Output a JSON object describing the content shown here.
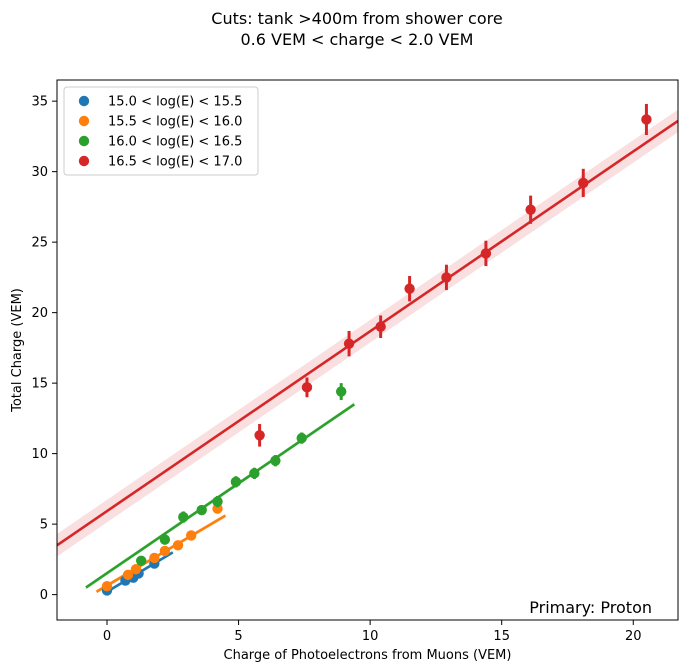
{
  "chart_data": {
    "type": "scatter",
    "title": "Cuts:  tank >400m from shower core",
    "subtitle": "0.6 VEM < charge < 2.0 VEM",
    "xlabel": "Charge of Photoelectrons from Muons (VEM)",
    "ylabel": "Total Charge (VEM)",
    "xlim": [
      -1.9,
      21.7
    ],
    "ylim": [
      -1.8,
      36.5
    ],
    "xticks": [
      0,
      5,
      10,
      15,
      20
    ],
    "yticks": [
      0,
      5,
      10,
      15,
      20,
      25,
      30,
      35
    ],
    "legend_position": "top-left",
    "annotation": "Primary: Proton",
    "grid": false,
    "series": [
      {
        "name": "15.0 < log(E) < 15.5",
        "color": "#1f77b4",
        "points": [
          {
            "x": 0.0,
            "y": 0.3,
            "err": 0.1
          },
          {
            "x": 0.7,
            "y": 1.0,
            "err": 0.1
          },
          {
            "x": 1.0,
            "y": 1.2,
            "err": 0.1
          },
          {
            "x": 1.2,
            "y": 1.5,
            "err": 0.1
          },
          {
            "x": 1.8,
            "y": 2.2,
            "err": 0.2
          }
        ],
        "fit": {
          "x": [
            0.0,
            2.5
          ],
          "y": [
            0.2,
            3.0
          ],
          "band": 0.1
        }
      },
      {
        "name": "15.5 < log(E) < 16.0",
        "color": "#ff7f0e",
        "points": [
          {
            "x": 0.0,
            "y": 0.6,
            "err": 0.1
          },
          {
            "x": 0.8,
            "y": 1.4,
            "err": 0.1
          },
          {
            "x": 1.1,
            "y": 1.8,
            "err": 0.1
          },
          {
            "x": 1.8,
            "y": 2.6,
            "err": 0.1
          },
          {
            "x": 2.2,
            "y": 3.1,
            "err": 0.1
          },
          {
            "x": 2.7,
            "y": 3.5,
            "err": 0.1
          },
          {
            "x": 3.2,
            "y": 4.2,
            "err": 0.2
          },
          {
            "x": 4.2,
            "y": 6.1,
            "err": 0.2
          }
        ],
        "fit": {
          "x": [
            -0.4,
            4.5
          ],
          "y": [
            0.2,
            5.6
          ],
          "band": 0.15
        }
      },
      {
        "name": "16.0 < log(E) < 16.5",
        "color": "#2ca02c",
        "points": [
          {
            "x": 1.3,
            "y": 2.4,
            "err": 0.1
          },
          {
            "x": 2.2,
            "y": 3.9,
            "err": 0.3
          },
          {
            "x": 2.9,
            "y": 5.5,
            "err": 0.4
          },
          {
            "x": 3.6,
            "y": 6.0,
            "err": 0.3
          },
          {
            "x": 4.2,
            "y": 6.6,
            "err": 0.4
          },
          {
            "x": 4.9,
            "y": 8.0,
            "err": 0.4
          },
          {
            "x": 5.6,
            "y": 8.6,
            "err": 0.4
          },
          {
            "x": 6.4,
            "y": 9.5,
            "err": 0.4
          },
          {
            "x": 7.4,
            "y": 11.1,
            "err": 0.4
          },
          {
            "x": 8.9,
            "y": 14.4,
            "err": 0.6
          }
        ],
        "fit": {
          "x": [
            -0.8,
            9.4
          ],
          "y": [
            0.5,
            13.5
          ],
          "band": 0.15
        }
      },
      {
        "name": "16.5 < log(E) < 17.0",
        "color": "#d62728",
        "points": [
          {
            "x": 5.8,
            "y": 11.3,
            "err": 0.8
          },
          {
            "x": 7.6,
            "y": 14.7,
            "err": 0.7
          },
          {
            "x": 9.2,
            "y": 17.8,
            "err": 0.9
          },
          {
            "x": 10.4,
            "y": 19.0,
            "err": 0.8
          },
          {
            "x": 11.5,
            "y": 21.7,
            "err": 0.9
          },
          {
            "x": 12.9,
            "y": 22.5,
            "err": 0.9
          },
          {
            "x": 14.4,
            "y": 24.2,
            "err": 0.9
          },
          {
            "x": 16.1,
            "y": 27.3,
            "err": 1.0
          },
          {
            "x": 18.1,
            "y": 29.2,
            "err": 1.0
          },
          {
            "x": 20.5,
            "y": 33.7,
            "err": 1.1
          }
        ],
        "fit": {
          "x": [
            -1.9,
            21.7
          ],
          "y": [
            3.5,
            33.6
          ],
          "band": 0.8
        }
      }
    ]
  }
}
